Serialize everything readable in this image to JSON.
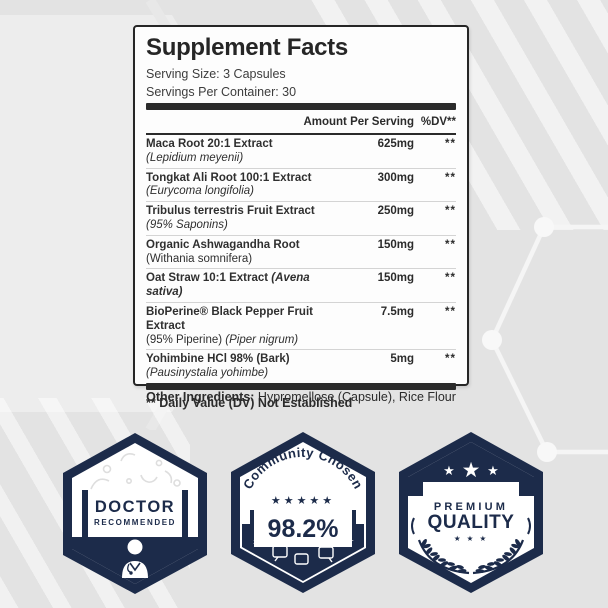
{
  "panel": {
    "title": "Supplement Facts",
    "serving_size": "Serving Size: 3 Capsules",
    "servings_per_container": "Servings Per Container: 30",
    "col_amount": "Amount Per Serving",
    "col_dv": "%DV**",
    "rows": [
      {
        "name": "Maca Root 20:1 Extract",
        "sub2": "(Lepidium meyenii)",
        "amount": "625mg",
        "dv": "**"
      },
      {
        "name": "Tongkat Ali Root 100:1 Extract",
        "sub2": "(Eurycoma longifolia)",
        "amount": "300mg",
        "dv": "**"
      },
      {
        "name": "Tribulus terrestris Fruit Extract",
        "sub2": "(95% Saponins)",
        "amount": "250mg",
        "dv": "**"
      },
      {
        "name": "Organic Ashwagandha Root",
        "sub1": "(Withania somnifera)",
        "amount": "150mg",
        "dv": "**"
      },
      {
        "name": "Oat Straw 10:1 Extract",
        "name2": "(Avena sativa)",
        "amount": "150mg",
        "dv": "**"
      },
      {
        "name": "BioPerine® Black Pepper Fruit Extract",
        "sub1": "(95% Piperine) ",
        "sub2": "(Piper nigrum)",
        "amount": "7.5mg",
        "dv": "**"
      },
      {
        "name": "Yohimbine HCl 98% (Bark)",
        "sub2": "(Pausinystalia yohimbe)",
        "amount": "5mg",
        "dv": "**"
      }
    ],
    "footnote": "** Daily Value (DV) Not Established"
  },
  "other_ingredients": {
    "label": "Other Ingredients:",
    "value": " Hypromellose (Capsule), Rice Flour"
  },
  "badges": {
    "doctor": {
      "line1": "DOCTOR",
      "line2": "RECOMMENDED"
    },
    "community": {
      "arc": "Community Chosen",
      "value": "98.2%"
    },
    "premium": {
      "line1": "PREMIUM",
      "line2": "QUALITY"
    }
  },
  "icons": {
    "star": "★",
    "stars_five": "★★★★★",
    "stars_small": "★ ★ ★"
  },
  "colors": {
    "navy": "#1c2b4a",
    "panel_border": "#262626",
    "ink": "#2b2b2b",
    "background": "#e3e3e3",
    "separator": "#d4d4d4"
  }
}
